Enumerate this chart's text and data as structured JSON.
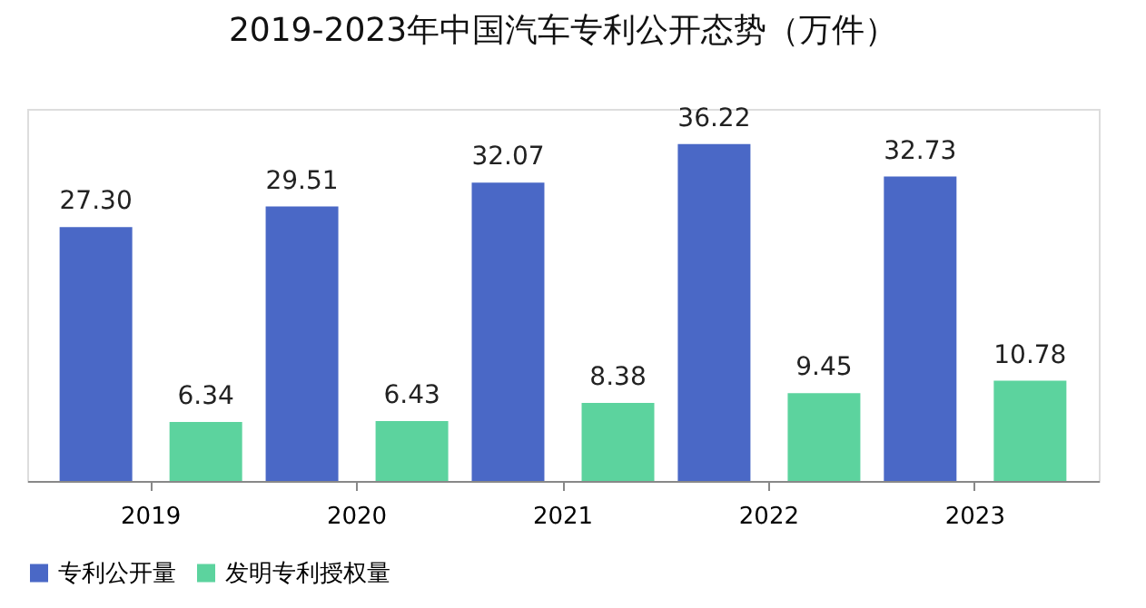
{
  "chart_data": {
    "type": "bar",
    "title": "2019-2023年中国汽车专利公开态势（万件）",
    "categories": [
      "2019",
      "2020",
      "2021",
      "2022",
      "2023"
    ],
    "series": [
      {
        "name": "专利公开量",
        "color": "#4a68c6",
        "values": [
          27.3,
          29.51,
          32.07,
          36.22,
          32.73
        ],
        "value_labels": [
          "27.30",
          "29.51",
          "32.07",
          "36.22",
          "32.73"
        ]
      },
      {
        "name": "发明专利授权量",
        "color": "#5cd39e",
        "values": [
          6.34,
          6.43,
          8.38,
          9.45,
          10.78
        ],
        "value_labels": [
          "6.34",
          "6.43",
          "8.38",
          "9.45",
          "10.78"
        ]
      }
    ],
    "legend": "bottom",
    "tick_labels": "x"
  }
}
